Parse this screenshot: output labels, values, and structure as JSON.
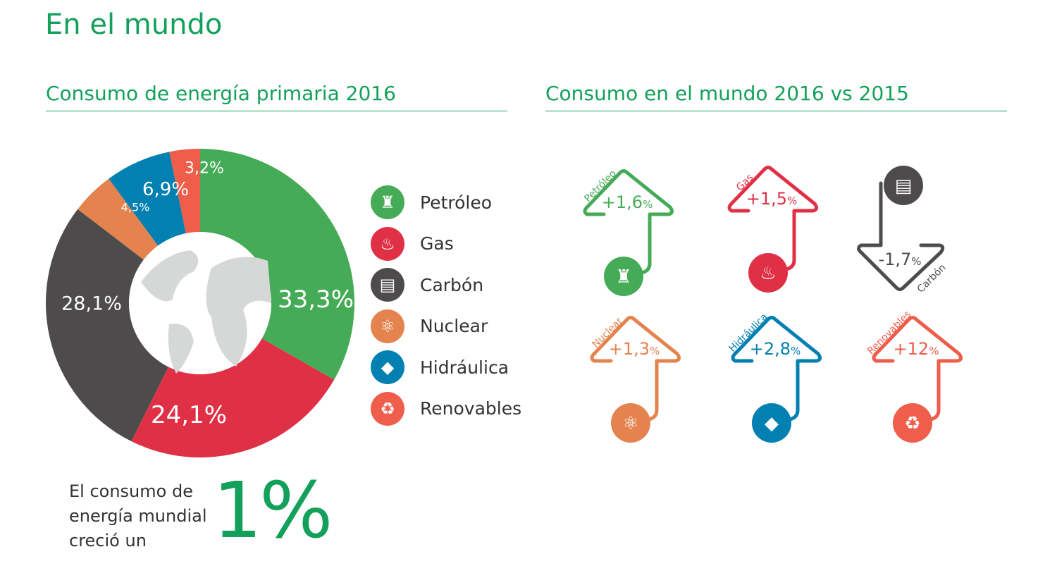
{
  "title": "En el mundo",
  "colors": {
    "title": "#13a05a",
    "Petróleo": "#46ab57",
    "Gas": "#e03046",
    "Carbón": "#4e4b4c",
    "Nuclear": "#e5834f",
    "Hidráulica": "#0280b2",
    "Renovables": "#ef5d4b",
    "globe": "#d6d8d7"
  },
  "legend": [
    {
      "label": "Petróleo",
      "icon": "oil-derrick-icon"
    },
    {
      "label": "Gas",
      "icon": "flame-icon"
    },
    {
      "label": "Carbón",
      "icon": "coal-cart-icon"
    },
    {
      "label": "Nuclear",
      "icon": "atom-icon"
    },
    {
      "label": "Hidráulica",
      "icon": "water-drop-icon"
    },
    {
      "label": "Renovables",
      "icon": "recycle-leaf-icon"
    }
  ],
  "note": {
    "text": "El consumo de energía mundial creció un",
    "value": "1%"
  },
  "chart_data": [
    {
      "type": "pie",
      "variant": "donut",
      "title": "Consumo de energía primaria 2016",
      "categories": [
        "Petróleo",
        "Gas",
        "Carbón",
        "Nuclear",
        "Hidráulica",
        "Renovables"
      ],
      "values": [
        33.3,
        24.1,
        28.1,
        4.5,
        6.9,
        3.2
      ],
      "labels": [
        "33,3%",
        "24,1%",
        "28,1%",
        "4,5%",
        "6,9%",
        "3,2%"
      ]
    },
    {
      "type": "bar",
      "variant": "arrow-indicators",
      "title": "Consumo en el mundo 2016 vs 2015",
      "categories": [
        "Petróleo",
        "Gas",
        "Carbón",
        "Nuclear",
        "Hidráulica",
        "Renovables"
      ],
      "values": [
        1.6,
        1.5,
        -1.7,
        1.3,
        2.8,
        12
      ],
      "labels": [
        "+1,6",
        "+1,5",
        "-1,7",
        "+1,3",
        "+2,8",
        "+12"
      ],
      "unit": "%"
    }
  ]
}
